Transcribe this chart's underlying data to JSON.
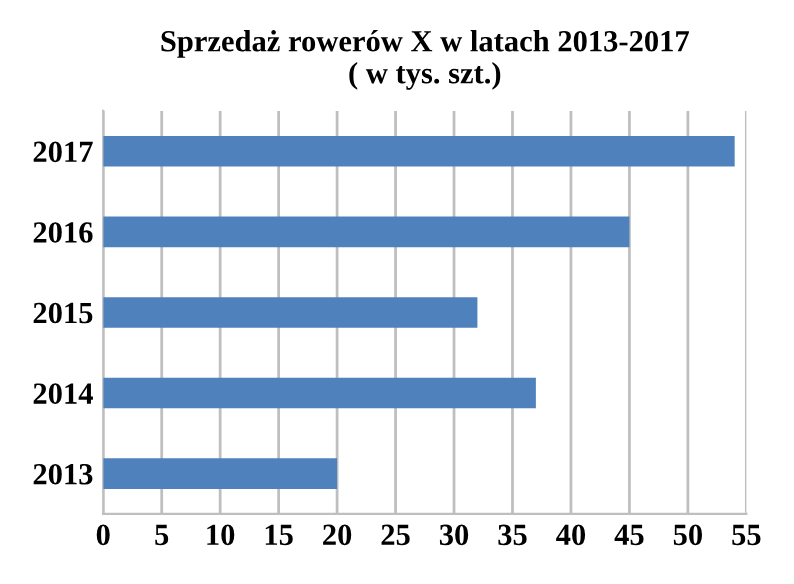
{
  "chart_data": {
    "type": "bar",
    "orientation": "horizontal",
    "title": "Sprzedaż rowerów X w latach 2013-2017\n( w tys. szt.)",
    "categories": [
      "2017",
      "2016",
      "2015",
      "2014",
      "2013"
    ],
    "values": [
      54,
      45,
      32,
      37,
      20
    ],
    "color": "#4f81bd",
    "xlim": [
      0,
      55
    ],
    "xticks": [
      0,
      5,
      10,
      15,
      20,
      25,
      30,
      35,
      40,
      45,
      50,
      55
    ],
    "grid": "x"
  }
}
